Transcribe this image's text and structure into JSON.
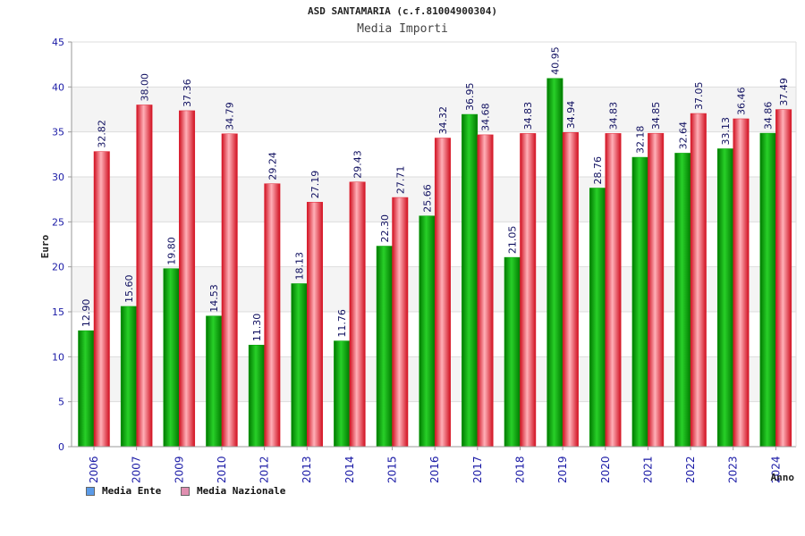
{
  "chart_data": {
    "type": "bar",
    "title": "ASD SANTAMARIA (c.f.81004900304)",
    "subtitle": "Media Importi",
    "ylabel": "Euro",
    "xlabel": "Anno",
    "ylim": [
      0,
      45
    ],
    "yticks": [
      0,
      5,
      10,
      15,
      20,
      25,
      30,
      35,
      40,
      45
    ],
    "grid": true,
    "legend_position": "bottom-left",
    "categories": [
      "2006",
      "2007",
      "2009",
      "2010",
      "2012",
      "2013",
      "2014",
      "2015",
      "2016",
      "2017",
      "2018",
      "2019",
      "2020",
      "2021",
      "2022",
      "2023",
      "2024"
    ],
    "series": [
      {
        "name": "Media Ente",
        "color": "#00a000",
        "legend_color": "#5b9be8",
        "values": [
          12.9,
          15.6,
          19.8,
          14.53,
          11.3,
          18.13,
          11.76,
          22.3,
          25.66,
          36.95,
          21.05,
          40.95,
          28.76,
          32.18,
          32.64,
          33.13,
          34.86
        ],
        "labels": [
          "12.90",
          "15.60",
          "19.80",
          "14.53",
          "11.30",
          "18.13",
          "11.76",
          "22.30",
          "25.66",
          "36.95",
          "21.05",
          "40.95",
          "28.76",
          "32.18",
          "32.64",
          "33.13",
          "34.86"
        ]
      },
      {
        "name": "Media Nazionale",
        "color": "#e02030",
        "legend_color": "#e08fb0",
        "values": [
          32.82,
          38.0,
          37.36,
          34.79,
          29.24,
          27.19,
          29.43,
          27.71,
          34.32,
          34.68,
          34.83,
          34.94,
          34.83,
          34.85,
          37.05,
          36.46,
          37.49
        ],
        "labels": [
          "32.82",
          "38.00",
          "37.36",
          "34.79",
          "29.24",
          "27.19",
          "29.43",
          "27.71",
          "34.32",
          "34.68",
          "34.83",
          "34.94",
          "34.83",
          "34.85",
          "37.05",
          "36.46",
          "37.49"
        ]
      }
    ]
  }
}
